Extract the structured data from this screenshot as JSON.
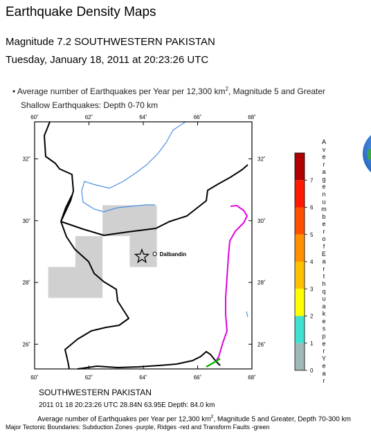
{
  "page": {
    "title": "Earthquake Density Maps",
    "event_line": "Magnitude 7.2 SOUTHWESTERN PAKISTAN",
    "date_line": "Tuesday, January 18, 2011 at 20:23:26 UTC",
    "bullet": "Average number of Earthquakes per Year per 12,300 km",
    "bullet_sup": "2",
    "bullet_tail": ", Magnitude 5 and Greater",
    "shallow": "Shallow Earthquakes: Depth 0-70 km"
  },
  "map": {
    "lon_range": [
      60,
      68
    ],
    "lat_range": [
      25.2,
      33.2
    ],
    "lon_ticks": [
      "60˚",
      "62˚",
      "64˚",
      "66˚",
      "68˚"
    ],
    "lat_ticks": [
      "32˚",
      "30˚",
      "28˚",
      "26˚"
    ],
    "city": {
      "name": "Dalbandin",
      "lon": 64.5,
      "lat": 28.9
    },
    "epicenter": {
      "lon": 63.95,
      "lat": 28.84
    },
    "shaded_cells": [
      {
        "lon": [
          62.5,
          64.5
        ],
        "lat": [
          29.5,
          30.5
        ]
      },
      {
        "lon": [
          61.5,
          62.5
        ],
        "lat": [
          28.5,
          29.5
        ]
      },
      {
        "lon": [
          63.5,
          64.5
        ],
        "lat": [
          28.5,
          29.5
        ]
      },
      {
        "lon": [
          60.5,
          62.5
        ],
        "lat": [
          27.5,
          28.5
        ]
      }
    ]
  },
  "legend": {
    "ticks": [
      "0",
      "1",
      "2",
      "3",
      "4",
      "5",
      "6",
      "7"
    ],
    "label": "Average number of Earthquakes per Year",
    "colors": [
      "#a0b8b8",
      "#40e0d0",
      "#ffff00",
      "#ffc000",
      "#ff9000",
      "#ff5000",
      "#ff1a00",
      "#b00000"
    ]
  },
  "captions": {
    "region": "SOUTHWESTERN PAKISTAN",
    "event": "2011 01 18 20:23:26 UTC 28.84N 63.95E Depth: 84.0 km",
    "avg": "Average number of Earthquakes per Year per 12,300 km",
    "avg_sup": "2",
    "avg_tail": ", Magnitude 5 and Greater, Depth 70-300 km",
    "tectonic": "Major Tectonic Boundaries: Subduction Zones -purple, Ridges -red and Transform Faults -green"
  },
  "colors": {
    "frame": "#000000",
    "border": "#000000",
    "river": "#4a90e2",
    "subduction": "#e000e0",
    "transform": "#00b000",
    "cell": "#d0d0d0"
  }
}
